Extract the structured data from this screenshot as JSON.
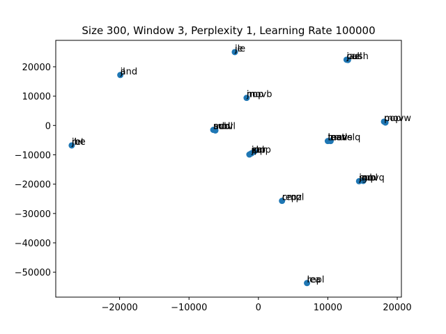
{
  "chart_data": {
    "type": "scatter",
    "title": "Size 300, Window 3, Perplexity 1, Learning Rate 100000",
    "xlabel": "",
    "ylabel": "",
    "xlim": [
      -29200,
      20600
    ],
    "ylim": [
      -58500,
      29000
    ],
    "xticks": [
      -20000,
      -10000,
      0,
      10000,
      20000
    ],
    "yticks": [
      -50000,
      -40000,
      -30000,
      -20000,
      -10000,
      0,
      10000,
      20000
    ],
    "xtick_labels": [
      "−20000",
      "−10000",
      "0",
      "10000",
      "20000"
    ],
    "ytick_labels": [
      "−50000",
      "−40000",
      "−30000",
      "−20000",
      "−10000",
      "0",
      "10000",
      "20000"
    ],
    "grid": false,
    "marker_color": "#1f77b4",
    "points": [
      {
        "x": -3400,
        "y": 25000,
        "labels": [
          "jle",
          "je"
        ]
      },
      {
        "x": 12700,
        "y": 22400,
        "labels": [
          "jae",
          "push",
          "call"
        ]
      },
      {
        "x": 12900,
        "y": 22300,
        "labels": []
      },
      {
        "x": -19900,
        "y": 17200,
        "labels": [
          "and",
          "jl"
        ]
      },
      {
        "x": -1700,
        "y": 9400,
        "labels": [
          "jmp",
          "movb",
          "nop"
        ]
      },
      {
        "x": 18100,
        "y": 1300,
        "labels": [
          "pop",
          "movw",
          "mov"
        ]
      },
      {
        "x": 18300,
        "y": 1000,
        "labels": []
      },
      {
        "x": -6500,
        "y": -1500,
        "labels": [
          "sub",
          "add",
          "addl",
          "movl"
        ]
      },
      {
        "x": -6200,
        "y": -1700,
        "labels": []
      },
      {
        "x": -26900,
        "y": -6800,
        "labels": [
          "jb",
          "jbe",
          "ret"
        ]
      },
      {
        "x": 10000,
        "y": -5300,
        "labels": [
          "test",
          "movslq",
          "leave",
          "imul"
        ]
      },
      {
        "x": 10400,
        "y": -5300,
        "labels": []
      },
      {
        "x": -1000,
        "y": -9500,
        "labels": [
          "xor",
          "cmp",
          "shr",
          "sar",
          "jp",
          "jnp",
          "shl"
        ]
      },
      {
        "x": -1300,
        "y": -9900,
        "labels": []
      },
      {
        "x": -600,
        "y": -8900,
        "labels": []
      },
      {
        "x": 14500,
        "y": -19000,
        "labels": [
          "jmp",
          "subl",
          "movq",
          "jno",
          "jg"
        ]
      },
      {
        "x": 15100,
        "y": -18900,
        "labels": []
      },
      {
        "x": 3400,
        "y": -25700,
        "labels": [
          "cmpl",
          "repz"
        ]
      },
      {
        "x": 7000,
        "y": -53700,
        "labels": [
          "lea",
          "repl"
        ]
      }
    ]
  }
}
